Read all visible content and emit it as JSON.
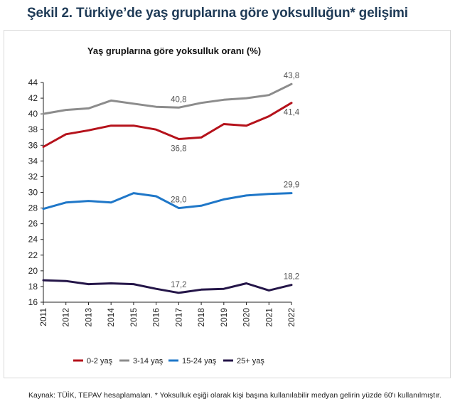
{
  "figure": {
    "title": "Şekil 2. Türkiye’de yaş gruplarına göre yoksulluğun* gelişimi",
    "source": "Kaynak: TÜİK, TEPAV hesaplamaları. * Yoksulluk eşiği olarak kişi başına kullanılabilir medyan gelirin yüzde 60'ı kullanılmıştır."
  },
  "chart_data": {
    "type": "line",
    "title": "Yaş gruplarına göre yoksulluk oranı (%)",
    "xlabel": "",
    "ylabel": "",
    "x": [
      "2011",
      "2012",
      "2013",
      "2014",
      "2015",
      "2016",
      "2017",
      "2018",
      "2019",
      "2020",
      "2021",
      "2022"
    ],
    "ylim": [
      16,
      44
    ],
    "yticks": [
      16,
      18,
      20,
      22,
      24,
      26,
      28,
      30,
      32,
      34,
      36,
      38,
      40,
      42,
      44
    ],
    "grid": false,
    "legend_position": "bottom",
    "series": [
      {
        "name": "0-2 yaş",
        "color": "#b5121b",
        "values": [
          35.8,
          37.4,
          37.9,
          38.5,
          38.5,
          38.0,
          36.8,
          37.0,
          38.7,
          38.5,
          39.7,
          41.4
        ]
      },
      {
        "name": "3-14 yaş",
        "color": "#8c8c8c",
        "values": [
          40.0,
          40.5,
          40.7,
          41.7,
          41.3,
          40.9,
          40.8,
          41.4,
          41.8,
          42.0,
          42.4,
          43.8
        ]
      },
      {
        "name": "15-24 yaş",
        "color": "#1f77c8",
        "values": [
          27.9,
          28.7,
          28.9,
          28.7,
          29.9,
          29.5,
          28.0,
          28.3,
          29.1,
          29.6,
          29.8,
          29.9
        ]
      },
      {
        "name": "25+ yaş",
        "color": "#241548",
        "values": [
          18.8,
          18.7,
          18.3,
          18.4,
          18.3,
          17.7,
          17.2,
          17.6,
          17.7,
          18.4,
          17.5,
          18.2
        ]
      }
    ],
    "annotations": [
      {
        "series": 1,
        "x": "2017",
        "text": "40,8",
        "pos": "above"
      },
      {
        "series": 1,
        "x": "2022",
        "text": "43,8",
        "pos": "above"
      },
      {
        "series": 0,
        "x": "2017",
        "text": "36,8",
        "pos": "below"
      },
      {
        "series": 0,
        "x": "2022",
        "text": "41,4",
        "pos": "below"
      },
      {
        "series": 2,
        "x": "2017",
        "text": "28,0",
        "pos": "above"
      },
      {
        "series": 2,
        "x": "2022",
        "text": "29,9",
        "pos": "above"
      },
      {
        "series": 3,
        "x": "2017",
        "text": "17,2",
        "pos": "above"
      },
      {
        "series": 3,
        "x": "2022",
        "text": "18,2",
        "pos": "above"
      }
    ]
  }
}
